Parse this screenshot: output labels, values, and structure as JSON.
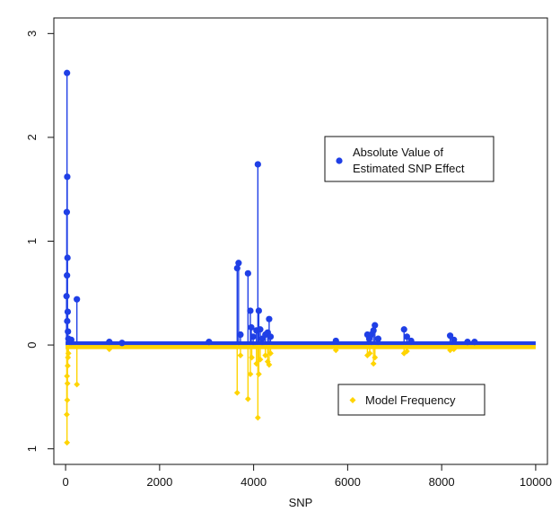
{
  "chart_data": {
    "type": "scatter",
    "title": "",
    "xlabel": "SNP",
    "ylabel": "",
    "xlim": [
      -250,
      10250
    ],
    "ylim": [
      -1.15,
      3.15
    ],
    "x_ticks": [
      0,
      2000,
      4000,
      6000,
      8000,
      10000
    ],
    "y_ticks": [
      -1,
      0,
      1,
      2,
      3
    ],
    "y_tick_labels": [
      "1",
      "0",
      "1",
      "2",
      "3"
    ],
    "grid": false,
    "colors": {
      "effect": "#1f3fe6",
      "frequency": "#ffd400"
    },
    "series": [
      {
        "name": "Absolute Value of Estimated SNP Effect",
        "marker": "circle",
        "stems": true,
        "points": [
          {
            "x": 30,
            "y": 2.62
          },
          {
            "x": 35,
            "y": 1.62
          },
          {
            "x": 25,
            "y": 1.28
          },
          {
            "x": 40,
            "y": 0.84
          },
          {
            "x": 30,
            "y": 0.67
          },
          {
            "x": 20,
            "y": 0.47
          },
          {
            "x": 45,
            "y": 0.32
          },
          {
            "x": 35,
            "y": 0.23
          },
          {
            "x": 50,
            "y": 0.13
          },
          {
            "x": 60,
            "y": 0.06
          },
          {
            "x": 80,
            "y": 0.04
          },
          {
            "x": 120,
            "y": 0.05
          },
          {
            "x": 240,
            "y": 0.44
          },
          {
            "x": 930,
            "y": 0.03
          },
          {
            "x": 1200,
            "y": 0.02
          },
          {
            "x": 3050,
            "y": 0.03
          },
          {
            "x": 3650,
            "y": 0.74
          },
          {
            "x": 3680,
            "y": 0.79
          },
          {
            "x": 3720,
            "y": 0.1
          },
          {
            "x": 3880,
            "y": 0.69
          },
          {
            "x": 3930,
            "y": 0.33
          },
          {
            "x": 3950,
            "y": 0.17
          },
          {
            "x": 3990,
            "y": 0.08
          },
          {
            "x": 4060,
            "y": 0.14
          },
          {
            "x": 4090,
            "y": 1.74
          },
          {
            "x": 4110,
            "y": 0.33
          },
          {
            "x": 4140,
            "y": 0.15
          },
          {
            "x": 4180,
            "y": 0.06
          },
          {
            "x": 4250,
            "y": 0.1
          },
          {
            "x": 4300,
            "y": 0.12
          },
          {
            "x": 4330,
            "y": 0.25
          },
          {
            "x": 4360,
            "y": 0.08
          },
          {
            "x": 5750,
            "y": 0.04
          },
          {
            "x": 6420,
            "y": 0.1
          },
          {
            "x": 6460,
            "y": 0.06
          },
          {
            "x": 6500,
            "y": 0.1
          },
          {
            "x": 6550,
            "y": 0.14
          },
          {
            "x": 6580,
            "y": 0.19
          },
          {
            "x": 6650,
            "y": 0.06
          },
          {
            "x": 7200,
            "y": 0.15
          },
          {
            "x": 7260,
            "y": 0.08
          },
          {
            "x": 7350,
            "y": 0.04
          },
          {
            "x": 8180,
            "y": 0.09
          },
          {
            "x": 8260,
            "y": 0.05
          },
          {
            "x": 8550,
            "y": 0.03
          },
          {
            "x": 8700,
            "y": 0.03
          }
        ]
      },
      {
        "name": "Model Frequency",
        "marker": "diamond",
        "stems": true,
        "points": [
          {
            "x": 30,
            "y": -0.94
          },
          {
            "x": 25,
            "y": -0.67
          },
          {
            "x": 35,
            "y": -0.53
          },
          {
            "x": 40,
            "y": -0.37
          },
          {
            "x": 30,
            "y": -0.3
          },
          {
            "x": 45,
            "y": -0.2
          },
          {
            "x": 50,
            "y": -0.12
          },
          {
            "x": 60,
            "y": -0.08
          },
          {
            "x": 240,
            "y": -0.38
          },
          {
            "x": 930,
            "y": -0.04
          },
          {
            "x": 3650,
            "y": -0.46
          },
          {
            "x": 3720,
            "y": -0.1
          },
          {
            "x": 3880,
            "y": -0.52
          },
          {
            "x": 3930,
            "y": -0.28
          },
          {
            "x": 3960,
            "y": -0.12
          },
          {
            "x": 4060,
            "y": -0.18
          },
          {
            "x": 4090,
            "y": -0.7
          },
          {
            "x": 4110,
            "y": -0.28
          },
          {
            "x": 4140,
            "y": -0.14
          },
          {
            "x": 4250,
            "y": -0.1
          },
          {
            "x": 4300,
            "y": -0.16
          },
          {
            "x": 4330,
            "y": -0.19
          },
          {
            "x": 4360,
            "y": -0.08
          },
          {
            "x": 5750,
            "y": -0.05
          },
          {
            "x": 6420,
            "y": -0.1
          },
          {
            "x": 6470,
            "y": -0.08
          },
          {
            "x": 6550,
            "y": -0.18
          },
          {
            "x": 6580,
            "y": -0.12
          },
          {
            "x": 7200,
            "y": -0.08
          },
          {
            "x": 7260,
            "y": -0.06
          },
          {
            "x": 8180,
            "y": -0.05
          },
          {
            "x": 8260,
            "y": -0.04
          }
        ]
      }
    ],
    "legend": [
      {
        "label_lines": [
          "Absolute Value of",
          "Estimated SNP Effect"
        ],
        "marker": "circle",
        "color": "#1f3fe6",
        "placement": "upper-right-center"
      },
      {
        "label_lines": [
          "Model Frequency"
        ],
        "marker": "diamond",
        "color": "#ffd400",
        "placement": "lower-right-center"
      }
    ]
  }
}
